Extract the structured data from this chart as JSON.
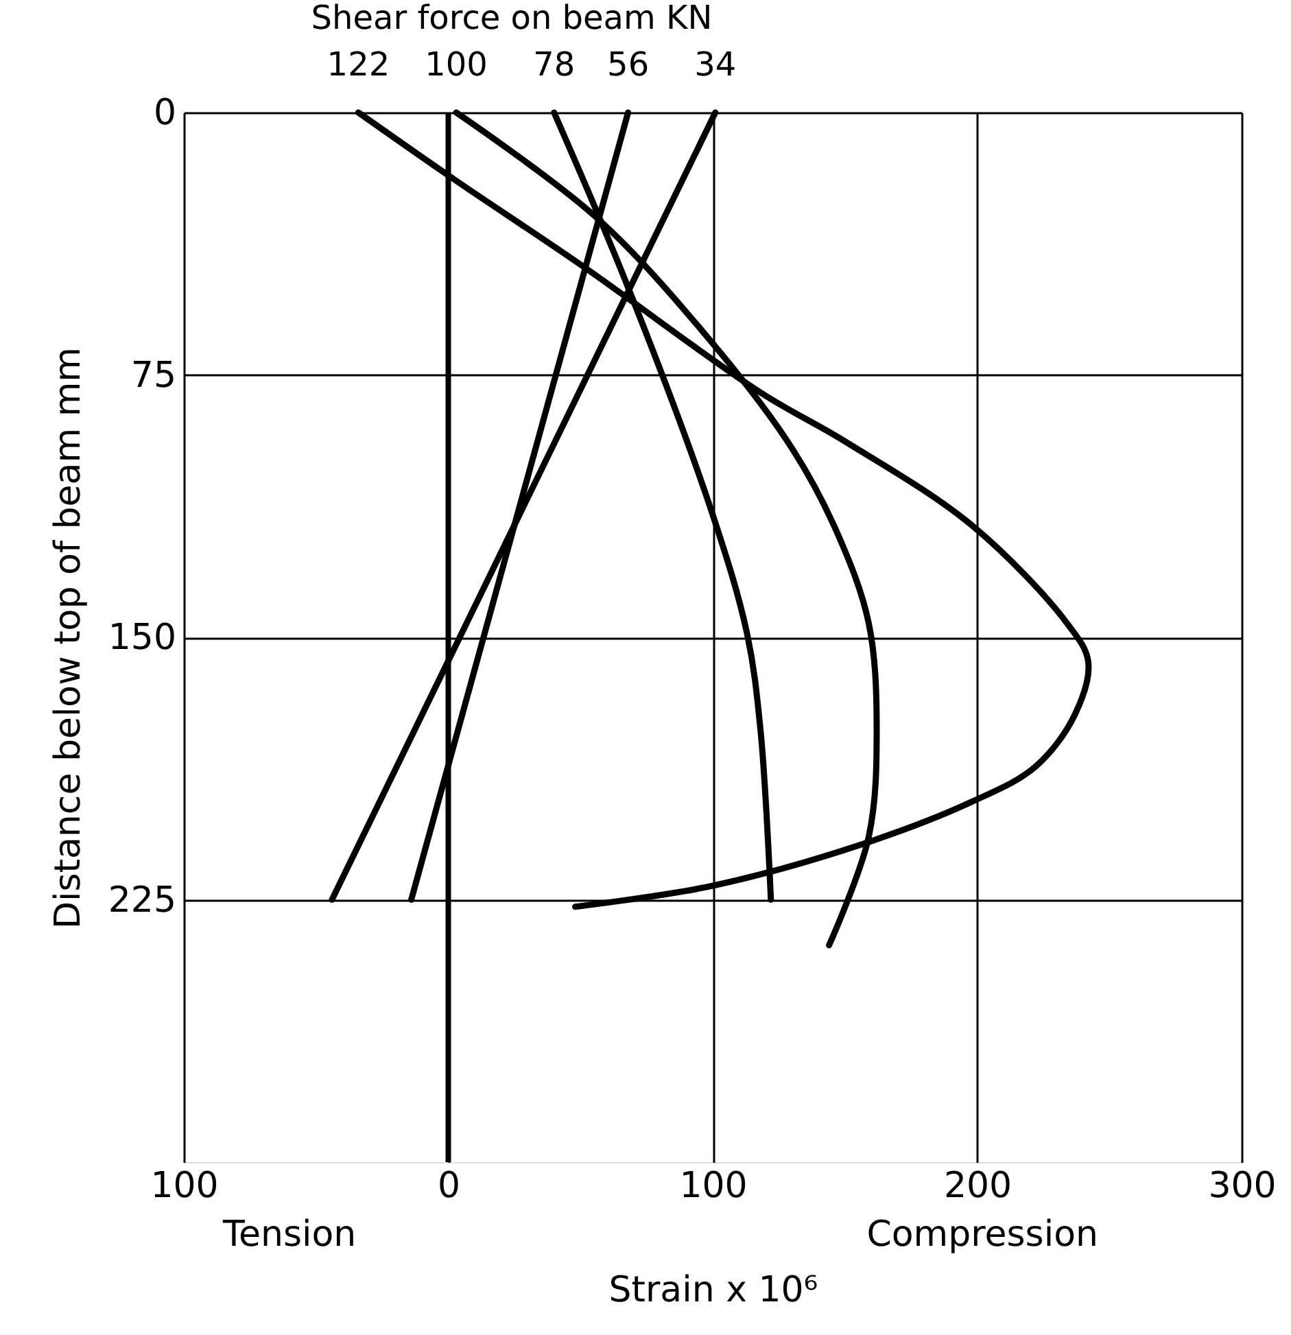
{
  "chart_data": {
    "type": "line",
    "title": "Shear force on beam KN",
    "xlabel": "Strain x 10⁶",
    "ylabel": "Distance below top of beam mm",
    "annotations": [
      "Tension",
      "Compression"
    ],
    "series": [
      {
        "name": "122",
        "color": "#000000",
        "x": [
          -34,
          2,
          51,
          118,
          150,
          198,
          234,
          242,
          237,
          222,
          198,
          157,
          100,
          48
        ],
        "values": [
          0,
          19,
          44,
          80,
          94,
          118,
          146,
          157,
          172,
          187,
          197,
          209,
          221,
          227
        ]
      },
      {
        "name": "100",
        "color": "#000000",
        "x": [
          3,
          56,
          100,
          130,
          147,
          159,
          162,
          159,
          144
        ],
        "values": [
          0,
          30,
          66,
          96,
          120,
          146,
          176,
          207,
          238
        ]
      },
      {
        "name": "78",
        "color": "#000000",
        "x": [
          40,
          68,
          100,
          113,
          118,
          122
        ],
        "values": [
          0,
          50,
          115,
          149,
          176,
          225
        ]
      },
      {
        "name": "56",
        "color": "#000000",
        "x": [
          68,
          -14
        ],
        "values": [
          0,
          225
        ]
      },
      {
        "name": "34",
        "color": "#000000",
        "x": [
          101,
          -44
        ],
        "values": [
          0,
          225
        ]
      }
    ],
    "ref_lines": [
      {
        "axis": "x",
        "value": 0,
        "color": "#000000"
      }
    ],
    "xlim": [
      -100,
      300
    ],
    "xticks": [
      {
        "value": -100,
        "label": "100"
      },
      0,
      100,
      200,
      300
    ],
    "ylim": [
      300,
      0
    ],
    "yticks": [
      0,
      75,
      150,
      225
    ],
    "grid": true,
    "line_style": "solid",
    "marker": "none"
  }
}
